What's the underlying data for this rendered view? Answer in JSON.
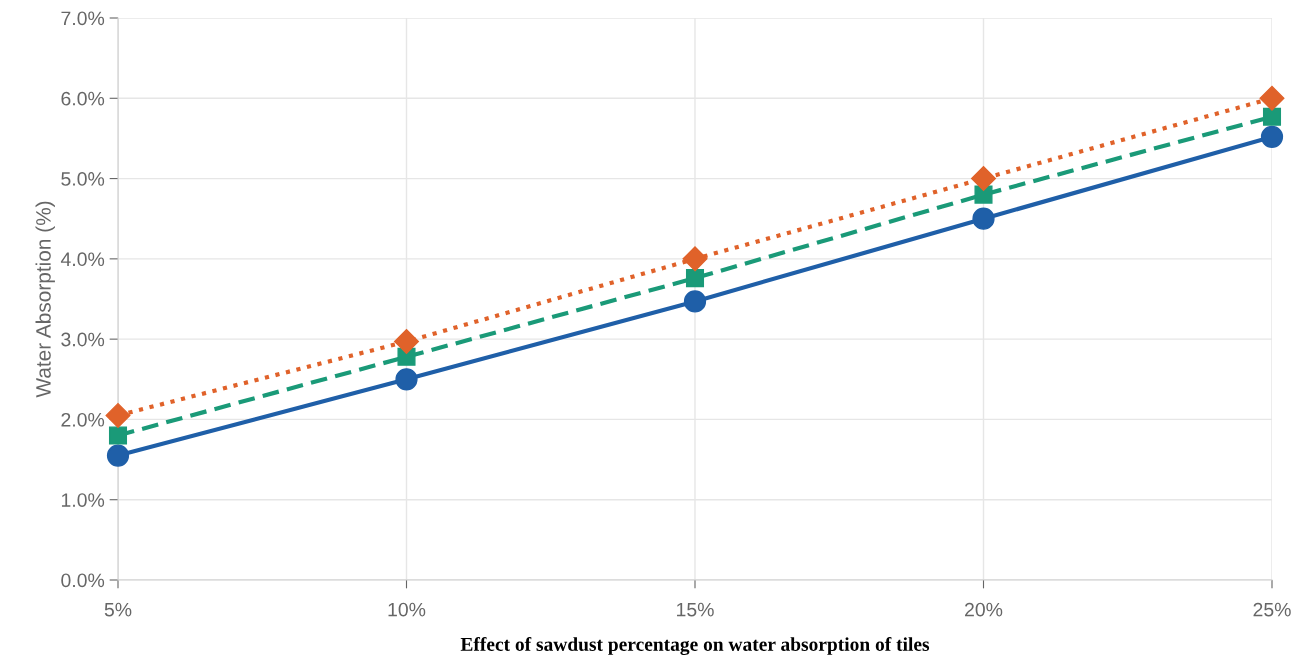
{
  "chart_data": {
    "type": "line",
    "xlabel": "Effect of sawdust percentage on water absorption of tiles",
    "ylabel": "Water Absorption (%)",
    "categories": [
      "5%",
      "10%",
      "15%",
      "20%",
      "25%"
    ],
    "series": [
      {
        "color": "#1f5fa8",
        "values": [
          1.55,
          2.5,
          3.47,
          4.5,
          5.52
        ],
        "marker": "circle",
        "line_style": "solid"
      },
      {
        "color": "#1a9a78",
        "values": [
          1.8,
          2.78,
          3.76,
          4.8,
          5.77
        ],
        "marker": "square",
        "line_style": "dashed"
      },
      {
        "color": "#e0622a",
        "values": [
          2.05,
          2.97,
          4.0,
          5.0,
          6.0
        ],
        "marker": "diamond",
        "line_style": "dotted"
      }
    ],
    "ylim": [
      0,
      7
    ],
    "yticks": [
      {
        "value": 0,
        "label": "0.0%"
      },
      {
        "value": 1,
        "label": "1.0%"
      },
      {
        "value": 2,
        "label": "2.0%"
      },
      {
        "value": 3,
        "label": "3.0%"
      },
      {
        "value": 4,
        "label": "4.0%"
      },
      {
        "value": 5,
        "label": "5.0%"
      },
      {
        "value": 6,
        "label": "6.0%"
      },
      {
        "value": 7,
        "label": "7.0%"
      }
    ],
    "grid": true,
    "legend": false
  }
}
